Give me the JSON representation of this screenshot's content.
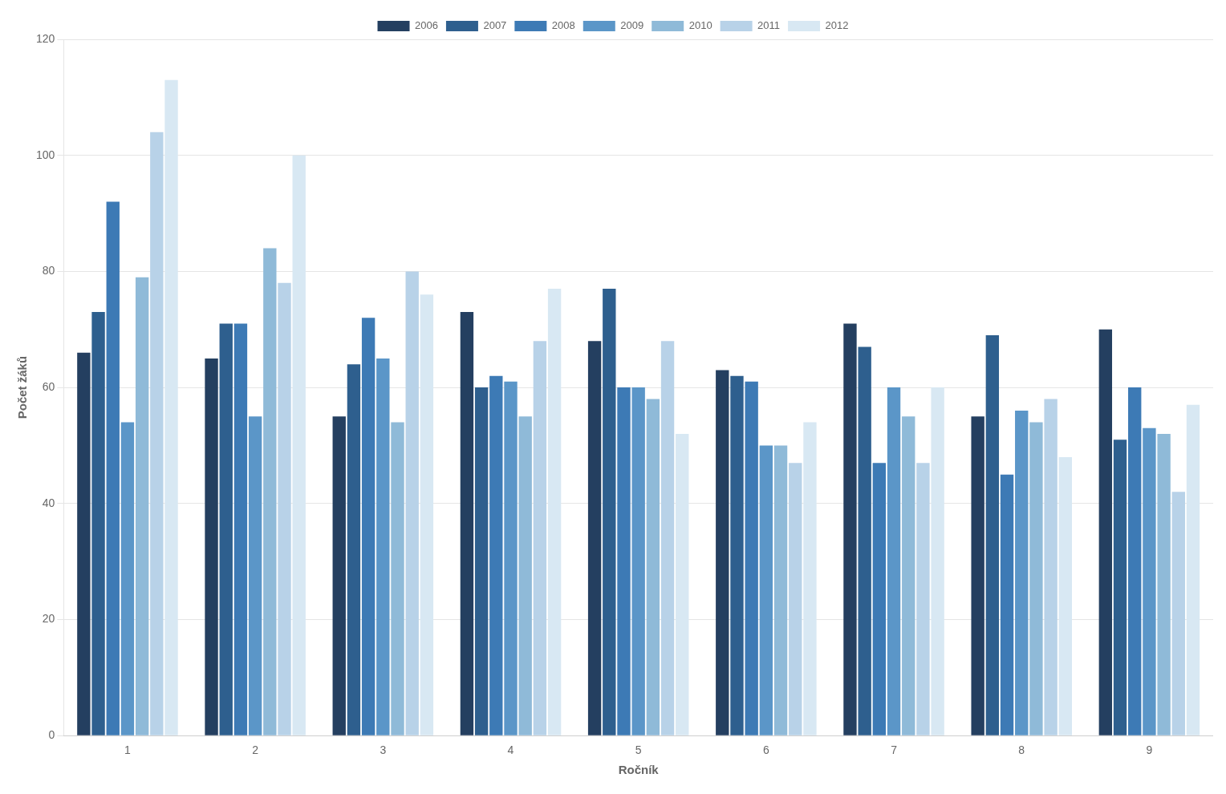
{
  "chart_data": {
    "type": "bar",
    "xlabel": "Ročník",
    "ylabel": "Počet žáků",
    "categories": [
      "1",
      "2",
      "3",
      "4",
      "5",
      "6",
      "7",
      "8",
      "9"
    ],
    "series": [
      {
        "name": "2006",
        "color": "#243F60",
        "values": [
          66,
          65,
          55,
          73,
          68,
          63,
          71,
          55,
          70
        ]
      },
      {
        "name": "2007",
        "color": "#2E5F8E",
        "values": [
          73,
          71,
          64,
          60,
          77,
          62,
          67,
          69,
          51
        ]
      },
      {
        "name": "2008",
        "color": "#3D7AB5",
        "values": [
          92,
          71,
          72,
          62,
          60,
          61,
          47,
          45,
          60
        ]
      },
      {
        "name": "2009",
        "color": "#5B96C8",
        "values": [
          54,
          55,
          65,
          61,
          60,
          50,
          60,
          56,
          53
        ]
      },
      {
        "name": "2010",
        "color": "#8FBAD8",
        "values": [
          79,
          84,
          54,
          55,
          58,
          50,
          55,
          54,
          52
        ]
      },
      {
        "name": "2011",
        "color": "#B8D2E8",
        "values": [
          104,
          78,
          80,
          68,
          68,
          47,
          47,
          58,
          42
        ]
      },
      {
        "name": "2012",
        "color": "#D8E8F3",
        "values": [
          113,
          100,
          76,
          77,
          52,
          54,
          60,
          48,
          57
        ]
      }
    ],
    "ylim": [
      0,
      120
    ],
    "yticks": [
      0,
      20,
      40,
      60,
      80,
      100,
      120
    ],
    "grid": true,
    "legend": "top"
  }
}
